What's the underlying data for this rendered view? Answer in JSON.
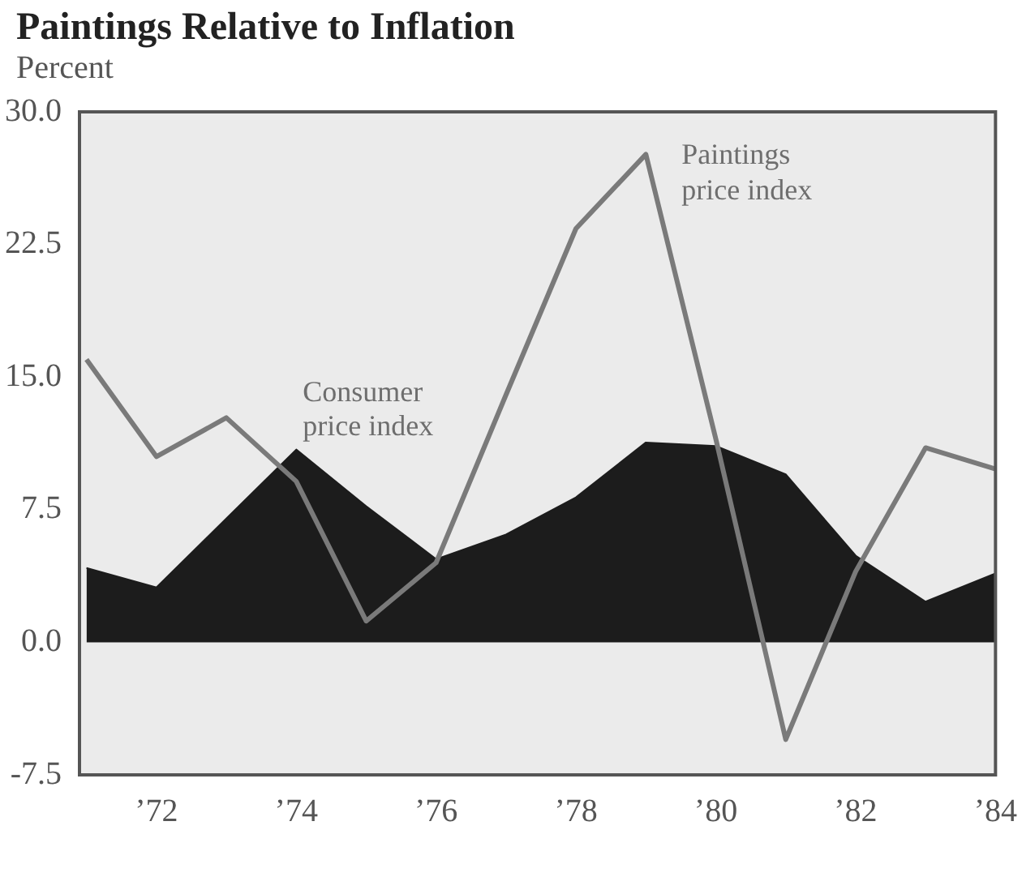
{
  "chart_data": {
    "type": "line",
    "title": "Paintings Relative to Inflation",
    "ylabel": "Percent",
    "x": [
      1971,
      1972,
      1973,
      1974,
      1975,
      1976,
      1977,
      1978,
      1979,
      1980,
      1981,
      1982,
      1983,
      1984
    ],
    "series": [
      {
        "name": "Consumer price index",
        "type": "area",
        "color": "#1c1c1c",
        "values": [
          4.2,
          3.1,
          7.0,
          10.9,
          7.7,
          4.7,
          6.1,
          8.2,
          11.3,
          11.1,
          9.5,
          4.9,
          2.3,
          3.9
        ]
      },
      {
        "name": "Paintings price index",
        "type": "line",
        "color": "#7a7a7a",
        "values": [
          16.0,
          10.5,
          12.7,
          9.1,
          1.2,
          4.5,
          14.0,
          23.4,
          27.6,
          11.5,
          -5.5,
          4.0,
          11.0,
          9.8
        ]
      }
    ],
    "xlim": [
      1970.9,
      1984
    ],
    "xticks": [
      {
        "value": 1972,
        "label": "’72"
      },
      {
        "value": 1974,
        "label": "’74"
      },
      {
        "value": 1976,
        "label": "’76"
      },
      {
        "value": 1978,
        "label": "’78"
      },
      {
        "value": 1980,
        "label": "’80"
      },
      {
        "value": 1982,
        "label": "’82"
      },
      {
        "value": 1984,
        "label": "’84"
      }
    ],
    "ylim": [
      -7.5,
      30
    ],
    "yticks": [
      {
        "value": -7.5,
        "label": "-7.5"
      },
      {
        "value": 0,
        "label": "0.0"
      },
      {
        "value": 7.5,
        "label": "7.5"
      },
      {
        "value": 15,
        "label": "15.0"
      },
      {
        "value": 22.5,
        "label": "22.5"
      },
      {
        "value": 30,
        "label": "30.0"
      }
    ],
    "grid": false,
    "legend": false,
    "marker": "none",
    "line_style": "solid"
  }
}
